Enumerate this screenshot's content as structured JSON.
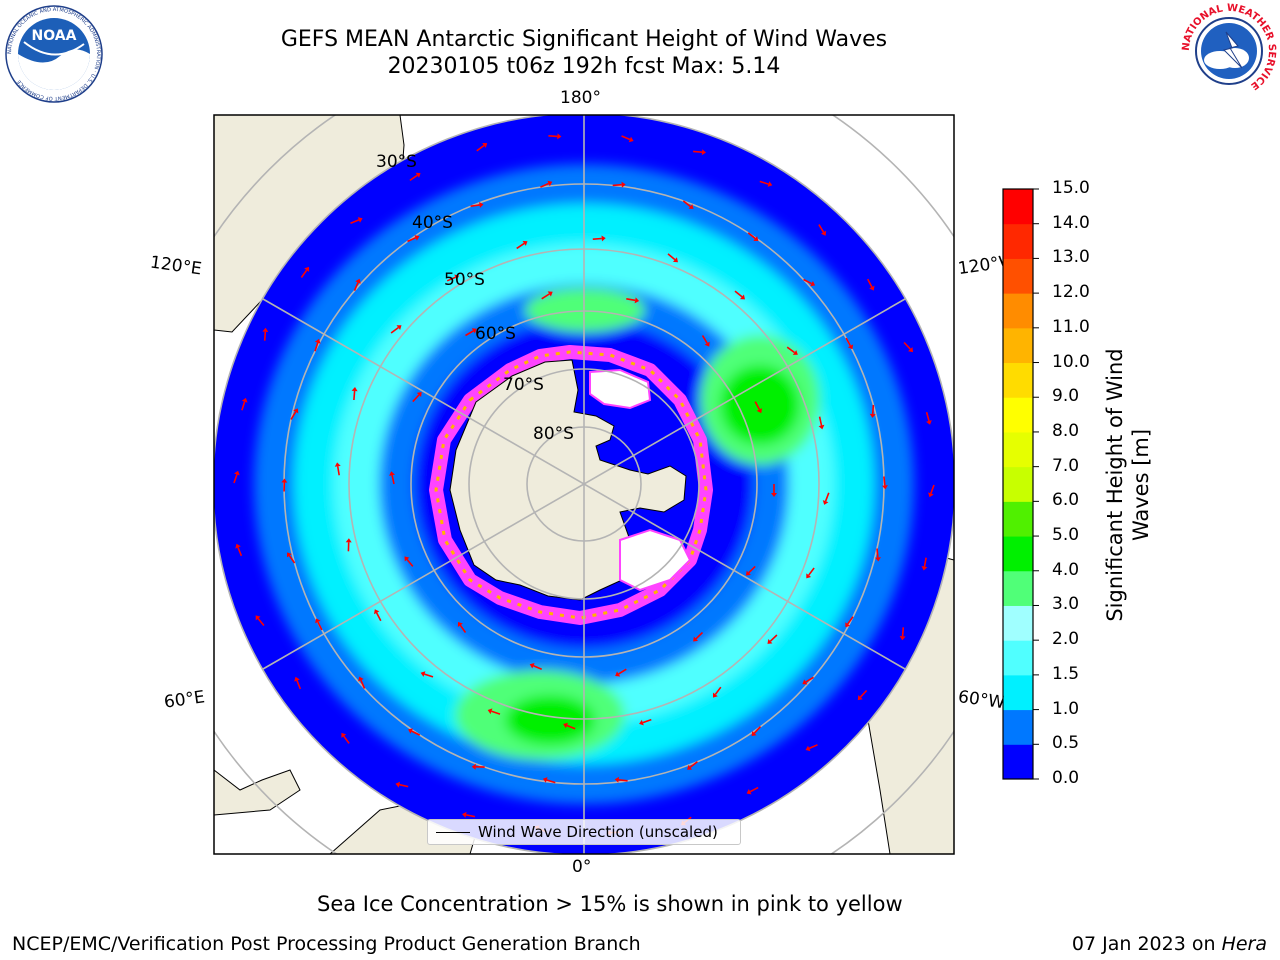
{
  "header": {
    "title_line1": "GEFS MEAN Antarctic Significant Height of Wind Waves",
    "title_line2": "20230105 t06z 192h fcst   Max: 5.14"
  },
  "logos": {
    "noaa_text": "NOAA",
    "noaa_ring_text": "NATIONAL OCEANIC AND ATMOSPHERIC ADMINISTRATION · U.S. DEPARTMENT OF COMMERCE",
    "nws_ring_text": "NATIONAL WEATHER SERVICE"
  },
  "map": {
    "projection": "south-polar-stereographic",
    "longitude_labels": {
      "top": "180°",
      "bottom": "0°",
      "upper_left": "120°E",
      "upper_right": "120°W",
      "lower_left": "60°E",
      "lower_right": "60°W"
    },
    "latitude_labels": [
      "30°S",
      "40°S",
      "50°S",
      "60°S",
      "70°S",
      "80°S"
    ],
    "legend_label": "Wind Wave Direction (unscaled)",
    "colors": {
      "land": "#efecdc",
      "arrow": "#ff0000",
      "ice_pink": "#ff44ff",
      "grid": "#b4b4b4"
    }
  },
  "colorbar": {
    "label_line1": "Significant Height of Wind",
    "label_line2": "Waves [m]",
    "ticks": [
      "0.0",
      "0.5",
      "1.0",
      "1.5",
      "2.0",
      "3.0",
      "4.0",
      "5.0",
      "6.0",
      "7.0",
      "8.0",
      "9.0",
      "10.0",
      "11.0",
      "12.0",
      "13.0",
      "14.0",
      "15.0"
    ],
    "colors": [
      "#0000ff",
      "#0078ff",
      "#00f0ff",
      "#50ffff",
      "#a0ffff",
      "#50ff78",
      "#00f000",
      "#50f000",
      "#c8ff00",
      "#e6ff00",
      "#ffff00",
      "#ffdc00",
      "#ffb400",
      "#ff8c00",
      "#ff5000",
      "#ff2800",
      "#ff0000"
    ]
  },
  "footer": {
    "note": "Sea Ice Concentration > 15% is shown in pink to yellow",
    "credit": "NCEP/EMC/Verification Post Processing Product Generation Branch",
    "date": "07 Jan 2023 on ",
    "machine": "Hera"
  }
}
